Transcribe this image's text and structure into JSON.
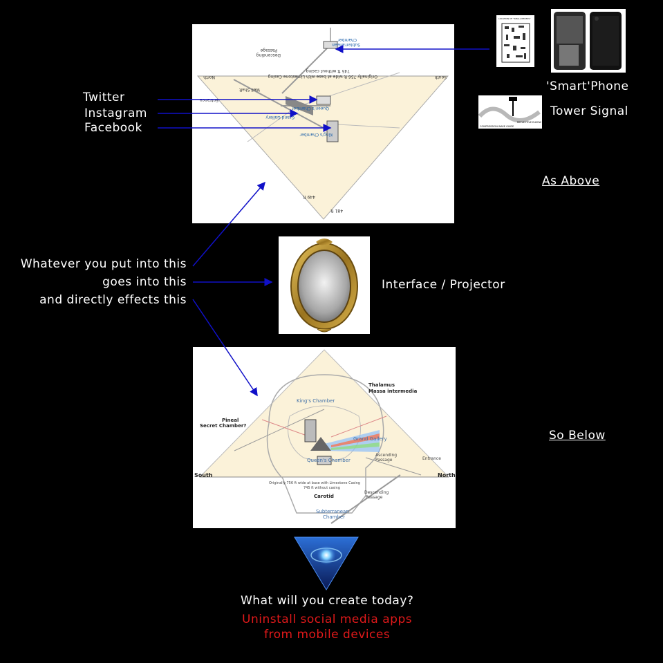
{
  "left_social": {
    "twitter": "Twitter",
    "instagram": "Instagram",
    "facebook": "Facebook"
  },
  "right_top": {
    "smartphone": "'Smart'Phone",
    "tower": "Tower Signal",
    "as_above": "As Above"
  },
  "middle": {
    "line1": "Whatever you put into this",
    "line2": "goes into this",
    "line3": "and directly effects this",
    "interface": "Interface / Projector"
  },
  "bottom": {
    "so_below": "So Below",
    "question": "What will you create today?",
    "warning_line1": "Uninstall social media apps",
    "warning_line2": "from mobile devices"
  },
  "top_diagram": {
    "subterranean": "Subterranean Chamber",
    "descending": "Descending Passage",
    "north": "North",
    "south": "South",
    "entrance": "Entrance",
    "well_shaft": "Well Shaft",
    "queens": "Queen's Chamber",
    "grand_gallery": "Grand Gallery",
    "kings": "King's Chamber",
    "base_text": "Originally 756 ft wide at base with Limestone Casing",
    "base_text2": "745 ft without casing",
    "height1": "481 ft",
    "height2": "449 ft",
    "chip_title": "LOCATION OF \"SMALL RECESS\"",
    "tower_caption": "COMPRESSION WAVE GUIDE",
    "tower_elbow": "REFLECTIVE ELBOW"
  },
  "bottom_diagram": {
    "thalamus": "Thalamus",
    "massa": "Massa intermedia",
    "pineal": "Pineal",
    "secret": "Secret Chamber?",
    "kings": "King's Chamber",
    "grand_gallery": "Grand Gallery",
    "queens": "Queen's Chamber",
    "entrance": "Entrance",
    "south": "South",
    "north": "North",
    "carotid": "Carotid",
    "subterranean": "Subterranean Chamber",
    "descending": "Descending Passage",
    "ascending": "Ascending Passage",
    "base_text": "Originally 756 ft wide at base with Limestone Casing",
    "base_text2": "745 ft without casing"
  },
  "colors": {
    "background": "#000000",
    "arrow": "#1010c8",
    "warning": "#e0191a",
    "pyramid_fill": "#fbf2d9",
    "frame_gold": "#b08a2e"
  },
  "icons": [
    "smartphone-photo-icon",
    "chip-diagram-icon",
    "tower-diagram-icon",
    "mirror-icon",
    "blue-triangle-logo-icon"
  ]
}
